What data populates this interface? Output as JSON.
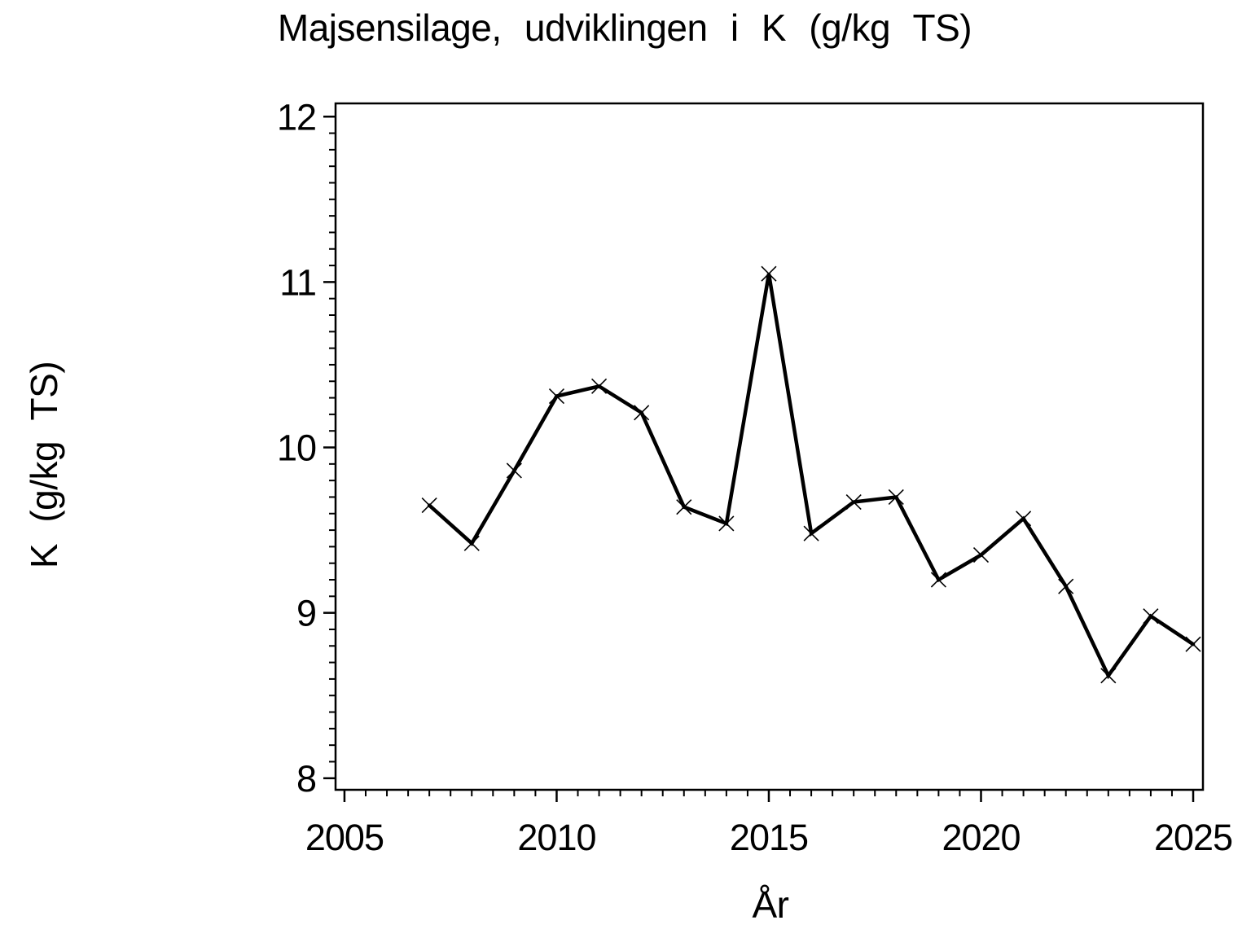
{
  "page": {
    "background": "#ffffff"
  },
  "chart_data": {
    "type": "line",
    "title": "Majsensilage, udviklingen i K (g/kg TS)",
    "xlabel": "År",
    "ylabel": "K (g/kg TS)",
    "x": [
      2007,
      2008,
      2009,
      2010,
      2011,
      2012,
      2013,
      2014,
      2015,
      2016,
      2017,
      2018,
      2019,
      2020,
      2021,
      2022,
      2023,
      2024,
      2025
    ],
    "y": [
      9.65,
      9.42,
      9.86,
      10.31,
      10.37,
      10.21,
      9.64,
      9.54,
      11.05,
      9.48,
      9.67,
      9.7,
      9.2,
      9.35,
      9.57,
      9.16,
      8.62,
      8.98,
      8.81
    ],
    "xlim": [
      2004.79,
      2025.23
    ],
    "ylim": [
      7.93,
      12.08
    ],
    "xticks_major": [
      2005,
      2010,
      2015,
      2020,
      2025
    ],
    "xtick_labels": [
      "2005",
      "2010",
      "2015",
      "2020",
      "2025"
    ],
    "xminor_step": 0.5,
    "yticks_major": [
      8,
      9,
      10,
      11,
      12
    ],
    "ytick_labels": [
      "8",
      "9",
      "10",
      "11",
      "12"
    ],
    "yminor_step": 0.1,
    "marker": "x-cross",
    "line_color": "#000000",
    "axis_color": "#000000",
    "grid": false,
    "legend": "none"
  }
}
